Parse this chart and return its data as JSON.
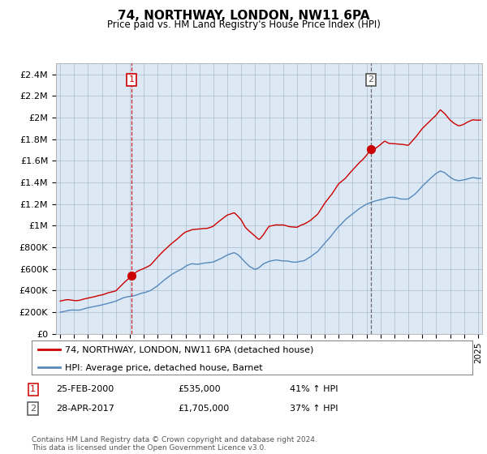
{
  "title": "74, NORTHWAY, LONDON, NW11 6PA",
  "subtitle": "Price paid vs. HM Land Registry's House Price Index (HPI)",
  "property_line_label": "74, NORTHWAY, LONDON, NW11 6PA (detached house)",
  "hpi_line_label": "HPI: Average price, detached house, Barnet",
  "footnote": "Contains HM Land Registry data © Crown copyright and database right 2024.\nThis data is licensed under the Open Government Licence v3.0.",
  "sale1": {
    "label": "1",
    "date_str": "25-FEB-2000",
    "price_str": "£535,000",
    "hpi_str": "41% ↑ HPI",
    "year": 2000.12
  },
  "sale2": {
    "label": "2",
    "date_str": "28-APR-2017",
    "price_str": "£1,705,000",
    "hpi_str": "37% ↑ HPI",
    "year": 2017.32
  },
  "ylim": [
    0,
    2500000
  ],
  "xlim": [
    1994.7,
    2025.3
  ],
  "yticks": [
    0,
    200000,
    400000,
    600000,
    800000,
    1000000,
    1200000,
    1400000,
    1600000,
    1800000,
    2000000,
    2200000,
    2400000
  ],
  "ytick_labels": [
    "£0",
    "£200K",
    "£400K",
    "£600K",
    "£800K",
    "£1M",
    "£1.2M",
    "£1.4M",
    "£1.6M",
    "£1.8M",
    "£2M",
    "£2.2M",
    "£2.4M"
  ],
  "property_color": "#cc0000",
  "hpi_color": "#5588bb",
  "vline1_color": "#cc0000",
  "vline2_color": "#555555",
  "sale1_marker_y": 535000,
  "sale2_marker_y": 1705000,
  "bg_color": "#ffffff",
  "chart_bg_color": "#dde8f5",
  "grid_color": "#aabbcc",
  "label_box1_color": "#cc0000",
  "label_box2_color": "#555555"
}
